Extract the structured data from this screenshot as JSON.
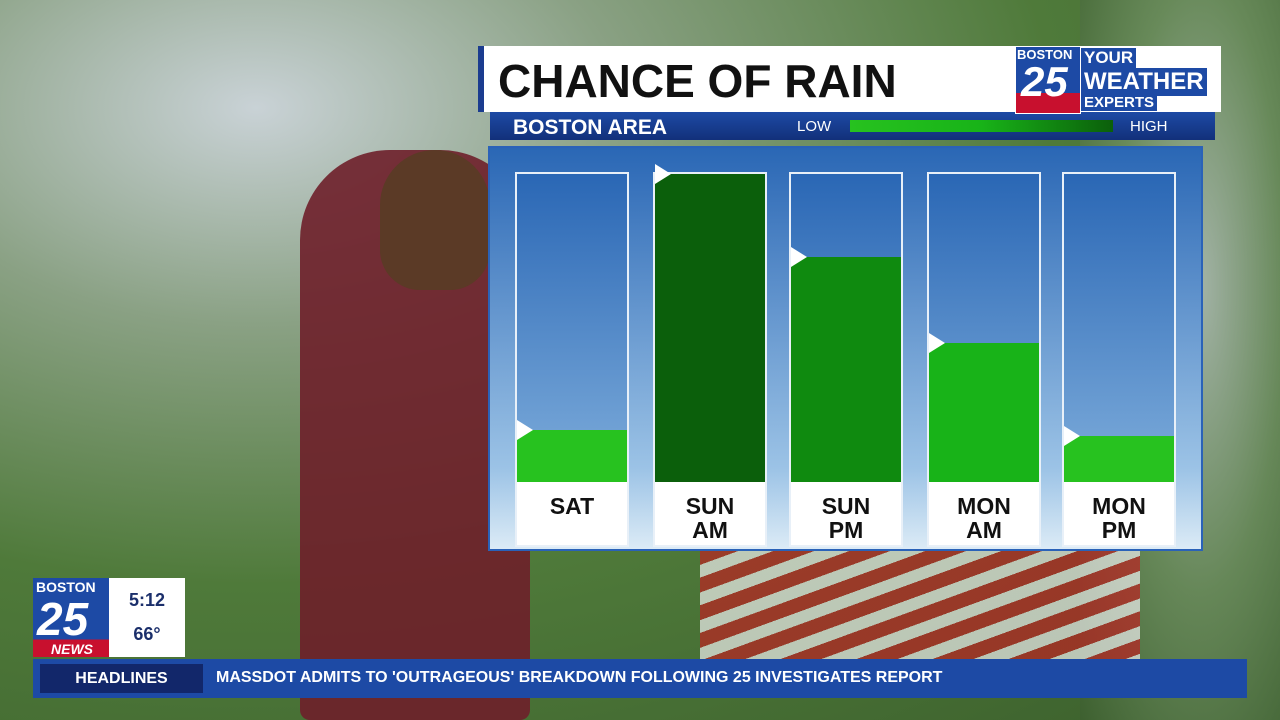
{
  "chart_data": {
    "type": "bar",
    "title": "CHANCE OF RAIN",
    "subtitle": "BOSTON AREA",
    "legend": {
      "low": "LOW",
      "high": "HIGH"
    },
    "categories": [
      "SAT",
      "SUN AM",
      "SUN PM",
      "MON AM",
      "MON PM"
    ],
    "values": [
      17,
      100,
      73,
      45,
      15
    ],
    "colors": [
      "#27c21f",
      "#0b5f0b",
      "#0f8a0f",
      "#18b318",
      "#27c21f"
    ],
    "ylim": [
      0,
      100
    ]
  },
  "logo": {
    "station": "BOSTON",
    "number": "25",
    "line1": "YOUR",
    "line2": "WEATHER",
    "line3": "EXPERTS"
  },
  "bug": {
    "station": "BOSTON",
    "number": "25",
    "brand": "NEWS",
    "time": "5:12",
    "temperature": "66°"
  },
  "ticker": {
    "label": "HEADLINES",
    "headline": "MASSDOT ADMITS TO 'OUTRAGEOUS' BREAKDOWN FOLLOWING 25 INVESTIGATES REPORT"
  }
}
